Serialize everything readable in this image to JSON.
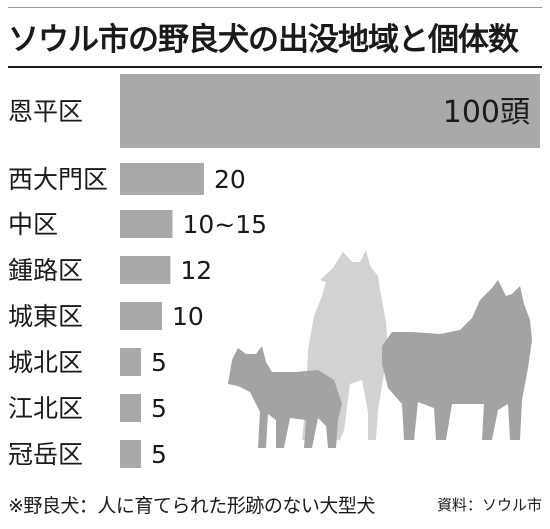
{
  "title": "ソウル市の野良犬の出没地域と個体数",
  "footnote": "※野良犬：人に育てられた形跡のない大型犬",
  "source": "資料：ソウル市",
  "colors": {
    "bar": "#a9a9a9",
    "dog_back": "#d2d2d2",
    "dog_front": "#a3a3a3",
    "text": "#1a1a1a"
  },
  "chart_data": {
    "type": "bar",
    "orientation": "horizontal",
    "title": "ソウル市の野良犬の出没地域と個体数",
    "categories": [
      "恩平区",
      "西大門区",
      "中区",
      "鍾路区",
      "城東区",
      "城北区",
      "江北区",
      "冠岳区"
    ],
    "values": [
      100,
      20,
      12.5,
      12,
      10,
      5,
      5,
      5
    ],
    "value_labels": [
      "100頭",
      "20",
      "10~15",
      "12",
      "10",
      "5",
      "5",
      "5"
    ],
    "xlim": [
      0,
      100
    ],
    "grid": false,
    "legend": "none"
  }
}
